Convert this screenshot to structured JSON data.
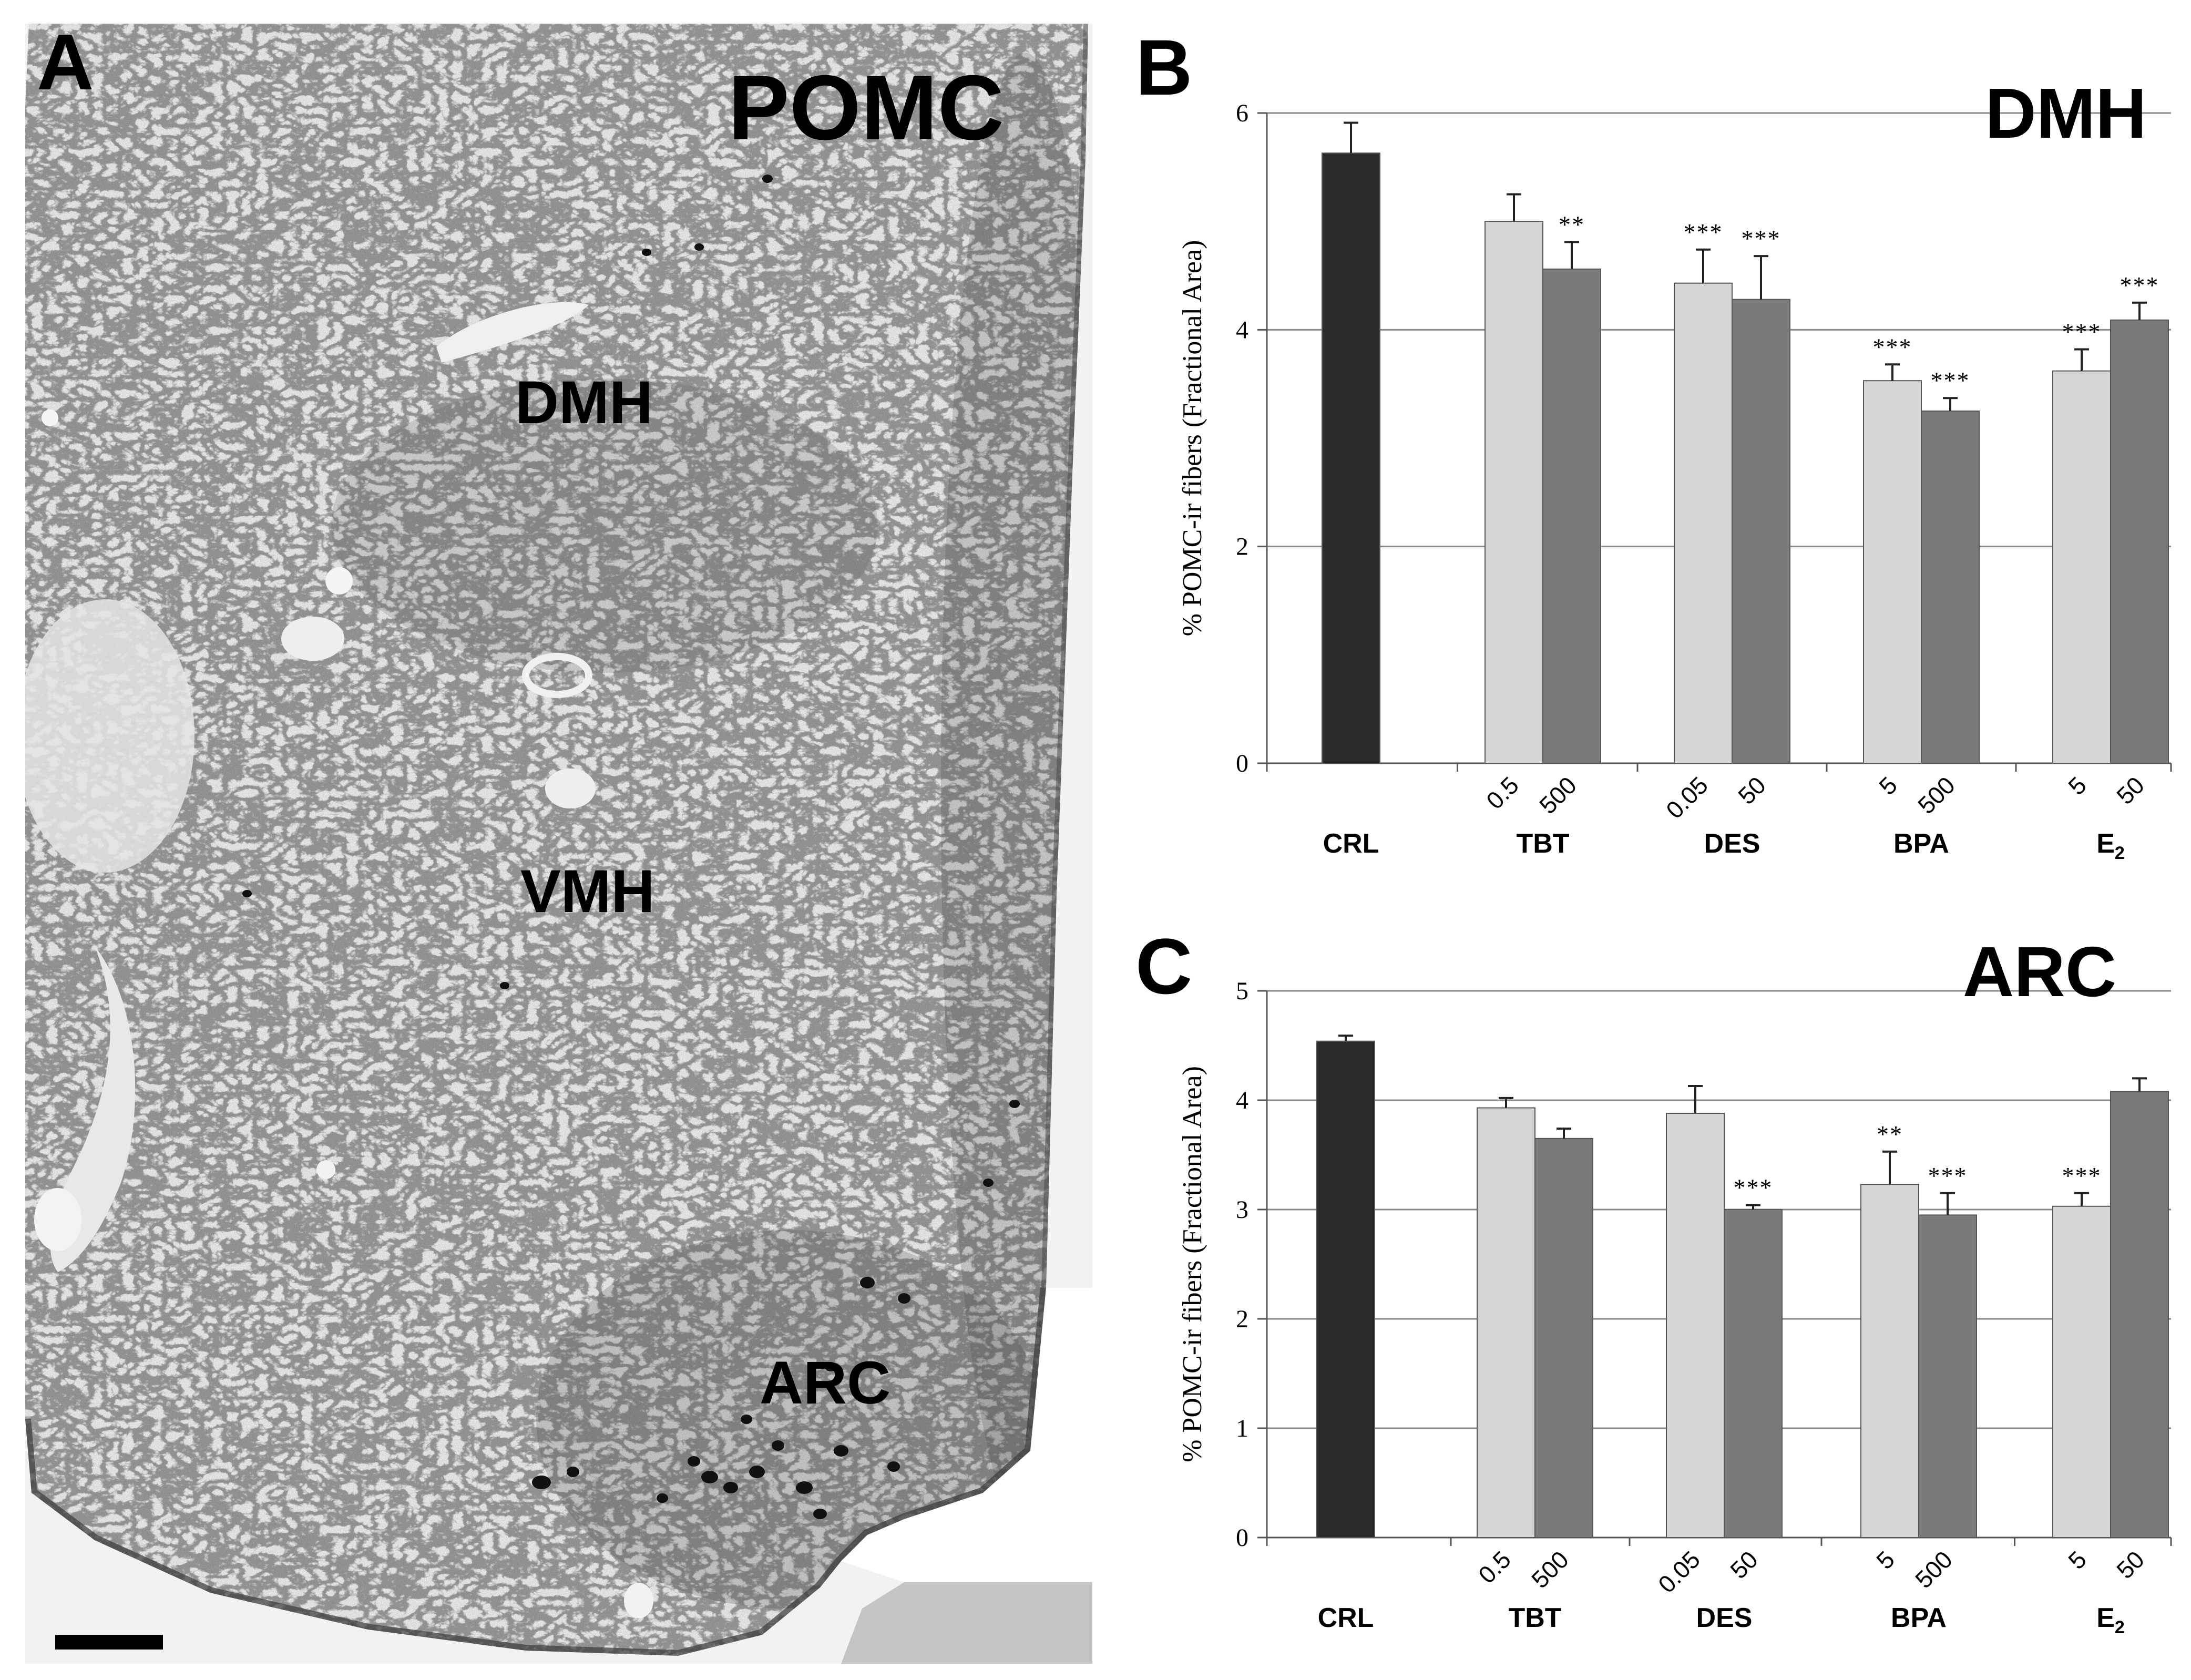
{
  "panels": {
    "a": {
      "letter": "A",
      "stain": "POMC",
      "regions": {
        "dmh": "DMH",
        "vmh": "VMH",
        "arc": "ARC"
      }
    },
    "b": {
      "letter": "B"
    },
    "c": {
      "letter": "C"
    }
  },
  "colors": {
    "tissue_bg": "#d8d8d8",
    "crl_bar": "#2a2a2a",
    "low_dose_bar": "#d6d6d6",
    "high_dose_bar": "#7a7a7a",
    "gridline": "#8a8a8a"
  },
  "chart_data": [
    {
      "type": "bar",
      "panel": "B",
      "title": "DMH",
      "ylabel": "% POMC-ir fibers (Fractional Area)",
      "ylim": [
        0,
        6
      ],
      "yticks": [
        0,
        2,
        4,
        6
      ],
      "grid": true,
      "groups": [
        {
          "label": "CRL",
          "bars": [
            {
              "dose": "",
              "kind": "control",
              "value": 5.63,
              "error": 0.28,
              "sig": ""
            }
          ]
        },
        {
          "label": "TBT",
          "bars": [
            {
              "dose": "0.5",
              "kind": "low",
              "value": 5.0,
              "error": 0.25,
              "sig": ""
            },
            {
              "dose": "500",
              "kind": "high",
              "value": 4.56,
              "error": 0.25,
              "sig": "**"
            }
          ]
        },
        {
          "label": "DES",
          "bars": [
            {
              "dose": "0.05",
              "kind": "low",
              "value": 4.43,
              "error": 0.31,
              "sig": "***"
            },
            {
              "dose": "50",
              "kind": "high",
              "value": 4.28,
              "error": 0.4,
              "sig": "***"
            }
          ]
        },
        {
          "label": "BPA",
          "bars": [
            {
              "dose": "5",
              "kind": "low",
              "value": 3.53,
              "error": 0.15,
              "sig": "***"
            },
            {
              "dose": "500",
              "kind": "high",
              "value": 3.25,
              "error": 0.12,
              "sig": "***"
            }
          ]
        },
        {
          "label": "E2",
          "bars": [
            {
              "dose": "5",
              "kind": "low",
              "value": 3.62,
              "error": 0.2,
              "sig": "***"
            },
            {
              "dose": "50",
              "kind": "high",
              "value": 4.09,
              "error": 0.16,
              "sig": "***"
            }
          ]
        }
      ]
    },
    {
      "type": "bar",
      "panel": "C",
      "title": "ARC",
      "ylabel": "% POMC-ir fibers (Fractional Area)",
      "ylim": [
        0,
        5
      ],
      "yticks": [
        0,
        1,
        2,
        3,
        4,
        5
      ],
      "grid": true,
      "groups": [
        {
          "label": "CRL",
          "bars": [
            {
              "dose": "",
              "kind": "control",
              "value": 4.54,
              "error": 0.05,
              "sig": ""
            }
          ]
        },
        {
          "label": "TBT",
          "bars": [
            {
              "dose": "0.5",
              "kind": "low",
              "value": 3.93,
              "error": 0.09,
              "sig": ""
            },
            {
              "dose": "500",
              "kind": "high",
              "value": 3.65,
              "error": 0.09,
              "sig": ""
            }
          ]
        },
        {
          "label": "DES",
          "bars": [
            {
              "dose": "0.05",
              "kind": "low",
              "value": 3.88,
              "error": 0.25,
              "sig": ""
            },
            {
              "dose": "50",
              "kind": "high",
              "value": 3.0,
              "error": 0.04,
              "sig": "***"
            }
          ]
        },
        {
          "label": "BPA",
          "bars": [
            {
              "dose": "5",
              "kind": "low",
              "value": 3.23,
              "error": 0.3,
              "sig": "**"
            },
            {
              "dose": "500",
              "kind": "high",
              "value": 2.95,
              "error": 0.2,
              "sig": "***"
            }
          ]
        },
        {
          "label": "E2",
          "bars": [
            {
              "dose": "5",
              "kind": "low",
              "value": 3.03,
              "error": 0.12,
              "sig": "***"
            },
            {
              "dose": "50",
              "kind": "high",
              "value": 4.08,
              "error": 0.12,
              "sig": ""
            }
          ]
        }
      ]
    }
  ]
}
